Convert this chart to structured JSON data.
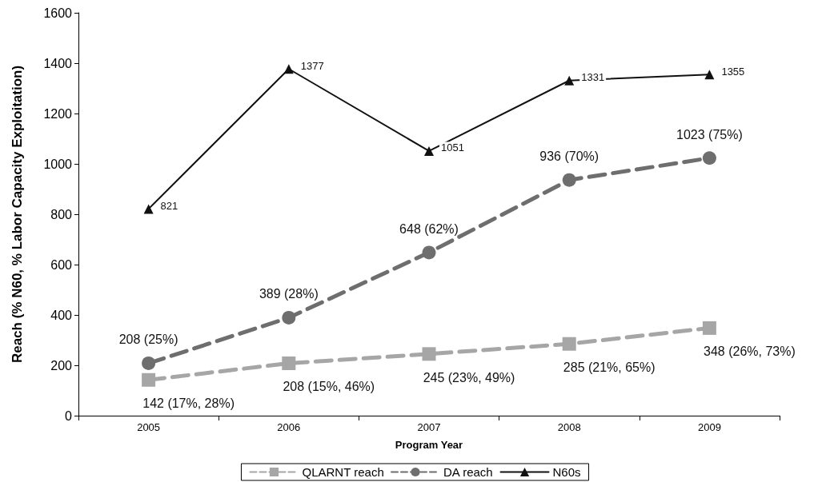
{
  "chart_data": {
    "type": "line",
    "xlabel": "Program Year",
    "ylabel": "Reach (% N60, % Labor Capacity Exploitation)",
    "categories": [
      "2005",
      "2006",
      "2007",
      "2008",
      "2009"
    ],
    "ylim": [
      0,
      1600
    ],
    "yticks": [
      0,
      200,
      400,
      600,
      800,
      1000,
      1200,
      1400,
      1600
    ],
    "grid": false,
    "legend": "bottom",
    "series": [
      {
        "name": "QLARNT reach",
        "color": "#a6a6a6",
        "marker": "square",
        "line_style": "dashed",
        "values": [
          142,
          208,
          245,
          285,
          348
        ],
        "value_labels": [
          "142 (17%, 28%)",
          "208 (15%, 46%)",
          "245 (23%, 49%)",
          "285 (21%, 65%)",
          "348 (26%, 73%)"
        ]
      },
      {
        "name": "DA reach",
        "color": "#6e6e6e",
        "marker": "circle",
        "line_style": "dashed",
        "values": [
          208,
          389,
          648,
          936,
          1023
        ],
        "value_labels": [
          "208 (25%)",
          "389 (28%)",
          "648 (62%)",
          "936 (70%)",
          "1023 (75%)"
        ]
      },
      {
        "name": "N60s",
        "color": "#111111",
        "marker": "triangle",
        "line_style": "solid",
        "values": [
          821,
          1377,
          1051,
          1331,
          1355
        ],
        "value_labels": [
          "821",
          "1377",
          "1051",
          "1331",
          "1355"
        ]
      }
    ]
  }
}
